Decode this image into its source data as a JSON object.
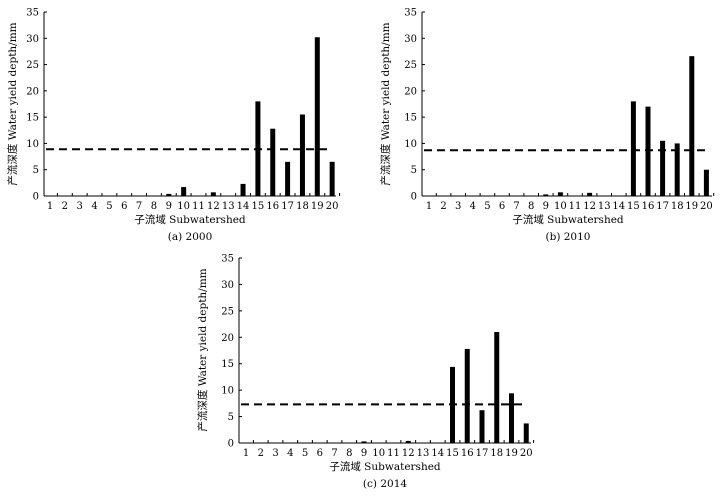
{
  "chart_data": [
    {
      "type": "bar",
      "caption": "(a) 2000",
      "xlabel": "子流域 Subwatershed",
      "ylabel": "产流深度 Water yield depth/mm",
      "categories": [
        "1",
        "2",
        "3",
        "4",
        "5",
        "6",
        "7",
        "8",
        "9",
        "10",
        "11",
        "12",
        "13",
        "14",
        "15",
        "16",
        "17",
        "18",
        "19",
        "20"
      ],
      "values": [
        0,
        0,
        0,
        0,
        0,
        0,
        0,
        0,
        0.4,
        1.7,
        0,
        0.7,
        0,
        2.3,
        18,
        12.8,
        6.5,
        15.5,
        30.2,
        6.5
      ],
      "reference_line": 8.9,
      "ylim": [
        0,
        35
      ],
      "yticks": [
        0,
        5,
        10,
        15,
        20,
        25,
        30,
        35
      ],
      "grid": false
    },
    {
      "type": "bar",
      "caption": "(b) 2010",
      "xlabel": "子流域 Subwatershed",
      "ylabel": "产流深度 Water yield depth/mm",
      "categories": [
        "1",
        "2",
        "3",
        "4",
        "5",
        "6",
        "7",
        "8",
        "9",
        "10",
        "11",
        "12",
        "13",
        "14",
        "15",
        "16",
        "17",
        "18",
        "19",
        "20"
      ],
      "values": [
        0,
        0,
        0,
        0,
        0,
        0,
        0,
        0,
        0.3,
        0.7,
        0,
        0.6,
        0,
        0,
        18,
        17,
        10.5,
        10,
        26.6,
        5
      ],
      "reference_line": 8.7,
      "ylim": [
        0,
        35
      ],
      "yticks": [
        0,
        5,
        10,
        15,
        20,
        25,
        30,
        35
      ],
      "grid": false
    },
    {
      "type": "bar",
      "caption": "(c) 2014",
      "xlabel": "子流域 Subwatershed",
      "ylabel": "产流深度 Water yield depth/mm",
      "categories": [
        "1",
        "2",
        "3",
        "4",
        "5",
        "6",
        "7",
        "8",
        "9",
        "10",
        "11",
        "12",
        "13",
        "14",
        "15",
        "16",
        "17",
        "18",
        "19",
        "20"
      ],
      "values": [
        0,
        0,
        0,
        0,
        0,
        0,
        0,
        0,
        0.3,
        0,
        0,
        0.4,
        0,
        0,
        14.4,
        17.8,
        6.2,
        21,
        9.4,
        3.7
      ],
      "reference_line": 7.3,
      "ylim": [
        0,
        35
      ],
      "yticks": [
        0,
        5,
        10,
        15,
        20,
        25,
        30,
        35
      ],
      "grid": false
    }
  ]
}
